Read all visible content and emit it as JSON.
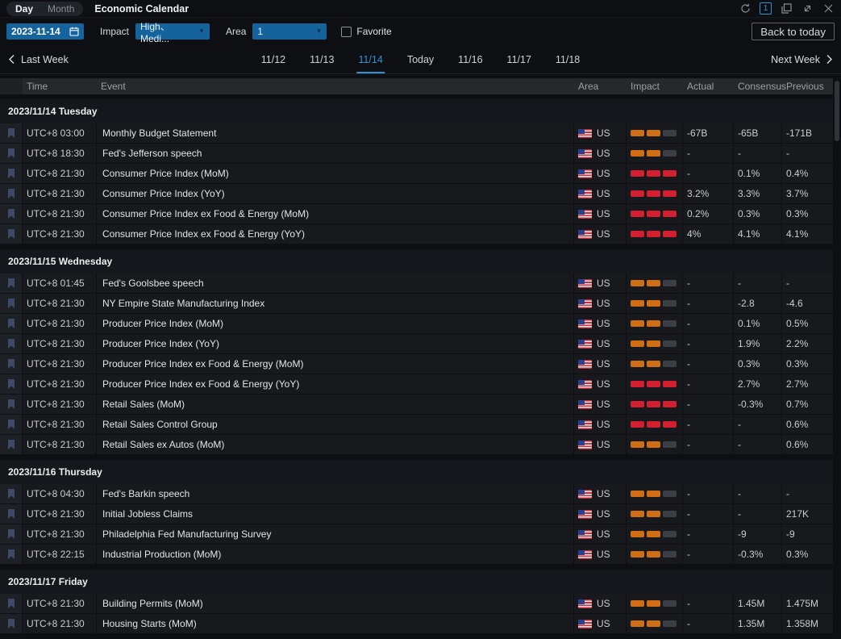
{
  "titlebar": {
    "mode_tabs": [
      {
        "label": "Day",
        "active": true
      },
      {
        "label": "Month",
        "active": false
      }
    ],
    "title": "Economic Calendar",
    "window_badge": "1"
  },
  "filters": {
    "date_value": "2023-11-14",
    "impact_label": "Impact",
    "impact_value": "High、Medi...",
    "area_label": "Area",
    "area_value": "1",
    "favorite_label": "Favorite",
    "back_to_today_label": "Back to today"
  },
  "week_nav": {
    "prev_label": "Last Week",
    "next_label": "Next Week",
    "days": [
      {
        "label": "11/12",
        "active": false
      },
      {
        "label": "11/13",
        "active": false
      },
      {
        "label": "11/14",
        "active": true
      },
      {
        "label": "Today",
        "active": false
      },
      {
        "label": "11/16",
        "active": false
      },
      {
        "label": "11/17",
        "active": false
      },
      {
        "label": "11/18",
        "active": false
      }
    ]
  },
  "icons": {
    "dropdown_arrow": "▼",
    "close": "✕"
  },
  "colors": {
    "accent_blue": "#2e93d4",
    "input_blue": "#15639c",
    "impact_medium_orange": "#cf6e14",
    "impact_high_red": "#d22030",
    "impact_inactive": "#3b3f45"
  },
  "table": {
    "columns": [
      "Time",
      "Event",
      "Area",
      "Impact",
      "Actual",
      "Consensus",
      "Previous"
    ],
    "sections": [
      {
        "date": "2023/11/14 Tuesday",
        "rows": [
          {
            "time": "UTC+8 03:00",
            "event": "Monthly Budget Statement",
            "area": "US",
            "impact": "medium",
            "actual": "-67B",
            "consensus": "-65B",
            "previous": "-171B"
          },
          {
            "time": "UTC+8 18:30",
            "event": "Fed's Jefferson speech",
            "area": "US",
            "impact": "medium",
            "actual": "-",
            "consensus": "-",
            "previous": "-"
          },
          {
            "time": "UTC+8 21:30",
            "event": "Consumer Price Index (MoM)",
            "area": "US",
            "impact": "high",
            "actual": "-",
            "consensus": "0.1%",
            "previous": "0.4%"
          },
          {
            "time": "UTC+8 21:30",
            "event": "Consumer Price Index (YoY)",
            "area": "US",
            "impact": "high",
            "actual": "3.2%",
            "consensus": "3.3%",
            "previous": "3.7%"
          },
          {
            "time": "UTC+8 21:30",
            "event": "Consumer Price Index ex Food & Energy (MoM)",
            "area": "US",
            "impact": "high",
            "actual": "0.2%",
            "consensus": "0.3%",
            "previous": "0.3%"
          },
          {
            "time": "UTC+8 21:30",
            "event": "Consumer Price Index ex Food & Energy (YoY)",
            "area": "US",
            "impact": "high",
            "actual": "4%",
            "consensus": "4.1%",
            "previous": "4.1%"
          }
        ]
      },
      {
        "date": "2023/11/15 Wednesday",
        "rows": [
          {
            "time": "UTC+8 01:45",
            "event": "Fed's Goolsbee speech",
            "area": "US",
            "impact": "medium",
            "actual": "-",
            "consensus": "-",
            "previous": "-"
          },
          {
            "time": "UTC+8 21:30",
            "event": "NY Empire State Manufacturing Index",
            "area": "US",
            "impact": "medium",
            "actual": "-",
            "consensus": "-2.8",
            "previous": "-4.6"
          },
          {
            "time": "UTC+8 21:30",
            "event": "Producer Price Index (MoM)",
            "area": "US",
            "impact": "medium",
            "actual": "-",
            "consensus": "0.1%",
            "previous": "0.5%"
          },
          {
            "time": "UTC+8 21:30",
            "event": "Producer Price Index (YoY)",
            "area": "US",
            "impact": "medium",
            "actual": "-",
            "consensus": "1.9%",
            "previous": "2.2%"
          },
          {
            "time": "UTC+8 21:30",
            "event": "Producer Price Index ex Food & Energy (MoM)",
            "area": "US",
            "impact": "medium",
            "actual": "-",
            "consensus": "0.3%",
            "previous": "0.3%"
          },
          {
            "time": "UTC+8 21:30",
            "event": "Producer Price Index ex Food & Energy (YoY)",
            "area": "US",
            "impact": "high",
            "actual": "-",
            "consensus": "2.7%",
            "previous": "2.7%"
          },
          {
            "time": "UTC+8 21:30",
            "event": "Retail Sales (MoM)",
            "area": "US",
            "impact": "high",
            "actual": "-",
            "consensus": "-0.3%",
            "previous": "0.7%"
          },
          {
            "time": "UTC+8 21:30",
            "event": "Retail Sales Control Group",
            "area": "US",
            "impact": "high",
            "actual": "-",
            "consensus": "-",
            "previous": "0.6%"
          },
          {
            "time": "UTC+8 21:30",
            "event": "Retail Sales ex Autos (MoM)",
            "area": "US",
            "impact": "medium",
            "actual": "-",
            "consensus": "-",
            "previous": "0.6%"
          }
        ]
      },
      {
        "date": "2023/11/16 Thursday",
        "rows": [
          {
            "time": "UTC+8 04:30",
            "event": "Fed's Barkin speech",
            "area": "US",
            "impact": "medium",
            "actual": "-",
            "consensus": "-",
            "previous": "-"
          },
          {
            "time": "UTC+8 21:30",
            "event": "Initial Jobless Claims",
            "area": "US",
            "impact": "medium",
            "actual": "-",
            "consensus": "-",
            "previous": "217K"
          },
          {
            "time": "UTC+8 21:30",
            "event": "Philadelphia Fed Manufacturing Survey",
            "area": "US",
            "impact": "medium",
            "actual": "-",
            "consensus": "-9",
            "previous": "-9"
          },
          {
            "time": "UTC+8 22:15",
            "event": "Industrial Production (MoM)",
            "area": "US",
            "impact": "medium",
            "actual": "-",
            "consensus": "-0.3%",
            "previous": "0.3%"
          }
        ]
      },
      {
        "date": "2023/11/17 Friday",
        "rows": [
          {
            "time": "UTC+8 21:30",
            "event": "Building Permits (MoM)",
            "area": "US",
            "impact": "medium",
            "actual": "-",
            "consensus": "1.45M",
            "previous": "1.475M"
          },
          {
            "time": "UTC+8 21:30",
            "event": "Housing Starts (MoM)",
            "area": "US",
            "impact": "medium",
            "actual": "-",
            "consensus": "1.35M",
            "previous": "1.358M"
          }
        ]
      }
    ]
  }
}
